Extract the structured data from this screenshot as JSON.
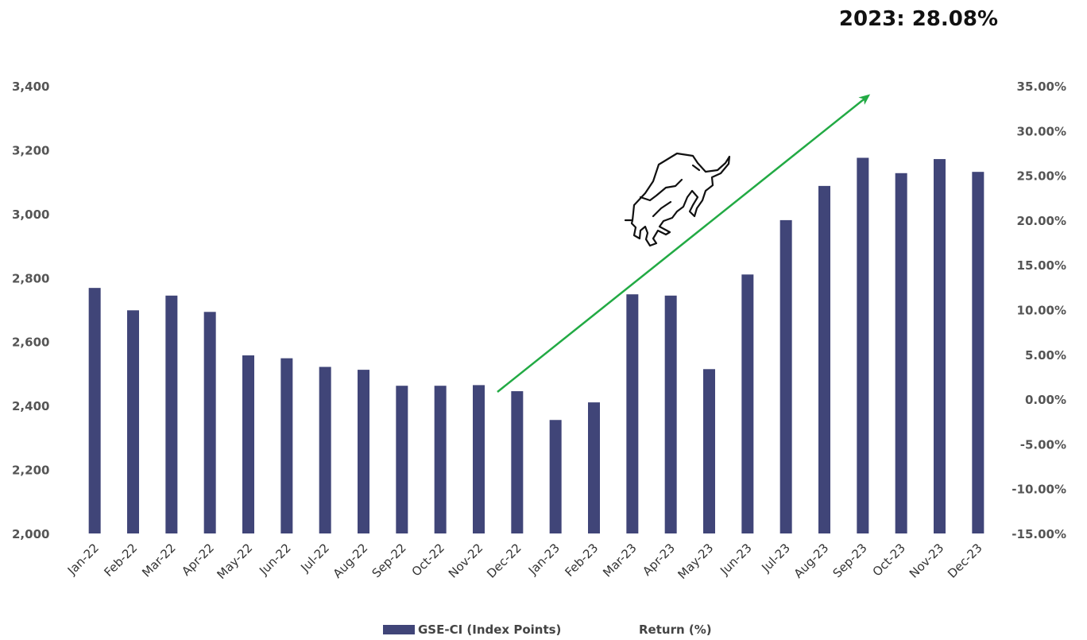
{
  "chart_data": {
    "type": "bar",
    "categories": [
      "Jan-22",
      "Feb-22",
      "Mar-22",
      "Apr-22",
      "May-22",
      "Jun-22",
      "Jul-22",
      "Aug-22",
      "Sep-22",
      "Oct-22",
      "Nov-22",
      "Dec-22",
      "Jan-23",
      "Feb-23",
      "Mar-23",
      "Apr-23",
      "May-23",
      "Jun-23",
      "Jul-23",
      "Aug-23",
      "Sep-23",
      "Oct-23",
      "Nov-23",
      "Dec-23"
    ],
    "series": [
      {
        "name": "GSE-CI (Index Points)",
        "color": "#404578",
        "values": [
          2768,
          2698,
          2744,
          2693,
          2557,
          2548,
          2521,
          2512,
          2462,
          2462,
          2464,
          2445,
          2355,
          2410,
          2748,
          2744,
          2514,
          2810,
          2980,
          3087,
          3175,
          3127,
          3171,
          3131
        ]
      }
    ],
    "legend": [
      {
        "label": "GSE-CI (Index Points)",
        "color": "#404578",
        "swatch": true
      },
      {
        "label": "Return (%)",
        "swatch": false
      }
    ],
    "legend_position": "bottom",
    "annotation": "2023: 28.08%",
    "y_left": {
      "min": 2000,
      "max": 3400,
      "step": 200,
      "ticks": [
        "2,000",
        "2,200",
        "2,400",
        "2,600",
        "2,800",
        "3,000",
        "3,200",
        "3,400"
      ]
    },
    "y_right": {
      "min": -15,
      "max": 35,
      "step": 5,
      "ticks": [
        "-15.00%",
        "-10.00%",
        "-5.00%",
        "0.00%",
        "5.00%",
        "10.00%",
        "15.00%",
        "20.00%",
        "25.00%",
        "30.00%",
        "35.00%"
      ]
    },
    "grid": false,
    "trend_arrow": {
      "color": "#22aa44",
      "from_category": "Dec-22",
      "to_category": "Sep-23"
    },
    "icon": "bull-icon"
  }
}
